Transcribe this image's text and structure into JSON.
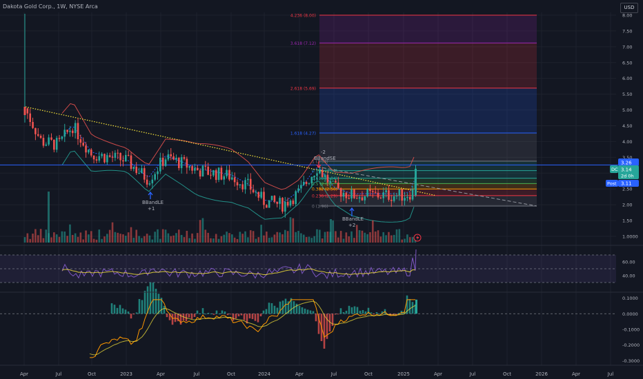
{
  "header": {
    "title": "Dakota Gold Corp., 1W, NYSE Arca",
    "currency": "USD"
  },
  "colors": {
    "bg": "#131722",
    "up": "#26a69a",
    "down": "#ef5350",
    "grid": "#1e222d",
    "axis": "#b2b5be",
    "blue": "#2962ff"
  },
  "price_axis": {
    "ticks": [
      "8.00",
      "7.50",
      "7.00",
      "6.50",
      "6.00",
      "5.50",
      "5.00",
      "4.50",
      "4.00",
      "3.50",
      "3.00",
      "2.50",
      "2.00",
      "1.50",
      "1.0000"
    ]
  },
  "rsi_axis": {
    "ticks": [
      "60.00",
      "40.00"
    ]
  },
  "macd_axis": {
    "ticks": [
      "0.1000",
      "0.0000",
      "-0.1000",
      "-0.2000",
      "-0.3000"
    ]
  },
  "time_axis": {
    "labels": [
      "Apr",
      "Jul",
      "Oct",
      "2023",
      "Apr",
      "Jul",
      "Oct",
      "2024",
      "Apr",
      "Jul",
      "Oct",
      "2025",
      "Apr",
      "Jul",
      "Oct",
      "2026",
      "Apr",
      "Jul"
    ]
  },
  "price_tags": {
    "high": "3.26",
    "last_label": "DC",
    "last": "3.14",
    "countdown": "2d 0h",
    "post_label": "Post",
    "post": "3.11"
  },
  "fib_labels": [
    "4.236 (8.00)",
    "3.618 (7.12)",
    "2.618 (5.69)",
    "1.618 (4.27)",
    "1 (3.38)",
    "0.786 (3.08)",
    "0.618 (2.84)",
    "0.5 (2.67)",
    "0.382 (2.50)",
    "0.236 (2.29)",
    "0 (1.96)"
  ],
  "annotations": {
    "bbandle1": "BBandLE",
    "bbandle1_n": "+1",
    "bbandse": "BBandSE",
    "bbandse_n": "-2",
    "bbandle2": "BBandLE",
    "bbandle2_n": "+2"
  },
  "chart_data": {
    "type": "candlestick",
    "title": "Dakota Gold Corp., 1W, NYSE Arca",
    "y_range": [
      0.9,
      8.05
    ],
    "approx_close_path": [
      {
        "x": "2022-04",
        "y": 5.1
      },
      {
        "x": "2022-06",
        "y": 3.9
      },
      {
        "x": "2022-08",
        "y": 4.4
      },
      {
        "x": "2022-10",
        "y": 3.5
      },
      {
        "x": "2023-01",
        "y": 3.4
      },
      {
        "x": "2023-03",
        "y": 2.7
      },
      {
        "x": "2023-05",
        "y": 3.6
      },
      {
        "x": "2023-08",
        "y": 3.0
      },
      {
        "x": "2023-11",
        "y": 2.9
      },
      {
        "x": "2024-01",
        "y": 2.1
      },
      {
        "x": "2024-03",
        "y": 2.3
      },
      {
        "x": "2024-05",
        "y": 3.1
      },
      {
        "x": "2024-07",
        "y": 2.5
      },
      {
        "x": "2024-09",
        "y": 2.3
      },
      {
        "x": "2024-12",
        "y": 2.3
      },
      {
        "x": "2025-02",
        "y": 3.14
      }
    ],
    "fibonacci": [
      {
        "level": "4.236",
        "price": 8.0,
        "color": "#f23645"
      },
      {
        "level": "3.618",
        "price": 7.12,
        "color": "#9c27b0"
      },
      {
        "level": "2.618",
        "price": 5.69,
        "color": "#f23645"
      },
      {
        "level": "1.618",
        "price": 4.27,
        "color": "#2962ff"
      },
      {
        "level": "1",
        "price": 3.38,
        "color": "#787b86"
      },
      {
        "level": "0.786",
        "price": 3.08,
        "color": "#26a69a"
      },
      {
        "level": "0.618",
        "price": 2.84,
        "color": "#26a69a"
      },
      {
        "level": "0.5",
        "price": 2.67,
        "color": "#4caf50"
      },
      {
        "level": "0.382",
        "price": 2.5,
        "color": "#ff9800"
      },
      {
        "level": "0.236",
        "price": 2.29,
        "color": "#f23645"
      },
      {
        "level": "0",
        "price": 1.96,
        "color": "#787b86"
      }
    ],
    "rsi_range": [
      20,
      80
    ],
    "macd_range": [
      -0.32,
      0.12
    ]
  }
}
